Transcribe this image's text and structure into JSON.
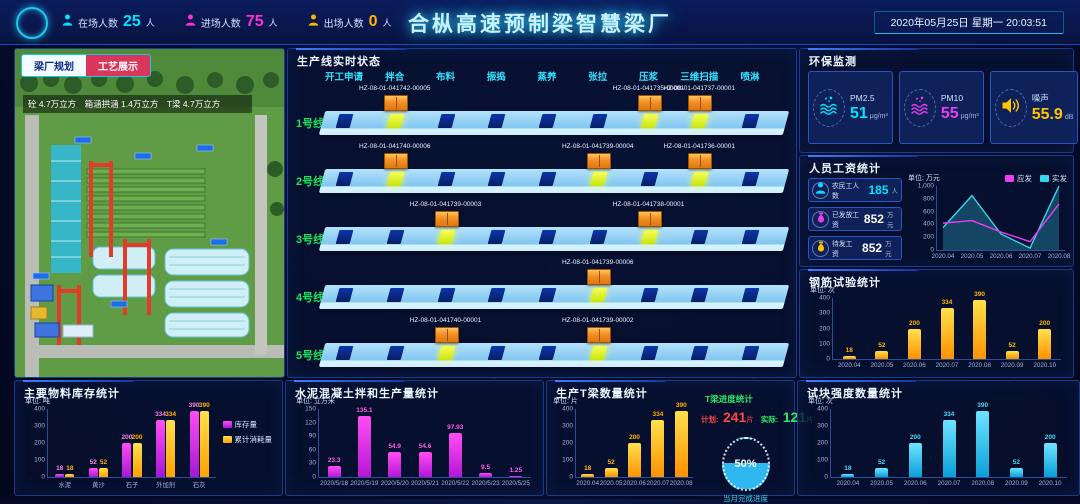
{
  "header": {
    "title": "合枞高速预制梁智慧梁厂",
    "datetime": "2020年05月25日 星期一 20:03:51",
    "people_stats": [
      {
        "icon": "person-icon",
        "label": "在场人数",
        "value": "25",
        "unit": "人",
        "color": "#00e5ff"
      },
      {
        "icon": "person-icon",
        "label": "进场人数",
        "value": "75",
        "unit": "人",
        "color": "#ff2fd6"
      },
      {
        "icon": "person-icon",
        "label": "出场人数",
        "value": "0",
        "unit": "人",
        "color": "#ffb300"
      }
    ]
  },
  "factory_panel": {
    "tabs": [
      {
        "label": "梁厂规划",
        "active": true
      },
      {
        "label": "工艺展示",
        "active": false
      }
    ],
    "capacity_text": "砼 4.7万立方　箱涵拱涵 1.4万立方　T梁 4.7万立方"
  },
  "production_panel": {
    "title": "生产线实时状态",
    "stations": [
      "开工申请",
      "拌合",
      "布料",
      "振捣",
      "蒸养",
      "张拉",
      "压浆",
      "三维扫描",
      "喷淋"
    ],
    "lines": [
      {
        "name": "1号线",
        "markers": [
          {
            "station": "拌合",
            "beam_id": "HZ-08-01-041742-00005"
          },
          {
            "station": "压浆",
            "beam_id": "HZ-08-01-041735-00001"
          },
          {
            "station": "三维扫描",
            "beam_id": "HZ-08-01-041737-00001"
          }
        ]
      },
      {
        "name": "2号线",
        "markers": [
          {
            "station": "拌合",
            "beam_id": "HZ-08-01-041740-00006"
          },
          {
            "station": "张拉",
            "beam_id": "HZ-08-01-041739-00004"
          },
          {
            "station": "三维扫描",
            "beam_id": "HZ-08-01-041736-00001"
          }
        ]
      },
      {
        "name": "3号线",
        "markers": [
          {
            "station": "布料",
            "beam_id": "HZ-08-01-041739-00003"
          },
          {
            "station": "压浆",
            "beam_id": "HZ-08-01-041738-00001"
          }
        ]
      },
      {
        "name": "4号线",
        "markers": [
          {
            "station": "张拉",
            "beam_id": "HZ-08-01-041739-00006"
          }
        ]
      },
      {
        "name": "5号线",
        "markers": [
          {
            "station": "布料",
            "beam_id": "HZ-08-01-041740-00001"
          },
          {
            "station": "张拉",
            "beam_id": "HZ-08-01-041739-00002"
          }
        ]
      }
    ]
  },
  "environment_panel": {
    "title": "环保监测",
    "cards": [
      {
        "icon": "dust-icon",
        "label": "PM2.5",
        "value": "51",
        "unit": "μg/m³",
        "color": "#00e5ff"
      },
      {
        "icon": "dust-icon",
        "label": "PM10",
        "value": "55",
        "unit": "μg/m³",
        "color": "#e93df0"
      },
      {
        "icon": "speaker-icon",
        "label": "噪声",
        "value": "55.9",
        "unit": "dB",
        "color": "#ffc400"
      }
    ]
  },
  "salary_panel": {
    "title": "人员工资统计",
    "stats": [
      {
        "icon": "worker-icon",
        "label": "农民工人数",
        "value": "185",
        "unit": "人",
        "color": "#00e5ff"
      },
      {
        "icon": "money-icon",
        "label": "已发放工资",
        "value": "852",
        "unit": "万元",
        "color": "#e93df0"
      },
      {
        "icon": "money-icon",
        "label": "待发工资",
        "value": "852",
        "unit": "万元",
        "color": "#ffc400"
      }
    ]
  },
  "tbeam_progress": {
    "title": "T梁进度统计",
    "plan_label": "计划:",
    "plan_value": "241",
    "plan_unit": "片",
    "actual_label": "实际:",
    "actual_value": "121",
    "actual_unit": "片",
    "gauge_value": "50%",
    "gauge_caption": "当月完成进度"
  },
  "chart_data": [
    {
      "id": "salary_trend",
      "type": "line",
      "unit_label": "单位: 万元",
      "x": [
        "2020.04",
        "2020.05",
        "2020.06",
        "2020.07",
        "2020.08"
      ],
      "series": [
        {
          "name": "应发",
          "color": "#e93df0",
          "style": "line",
          "values": [
            420,
            460,
            280,
            130,
            720
          ]
        },
        {
          "name": "实发",
          "color": "#35d6f0",
          "style": "area",
          "values": [
            350,
            850,
            250,
            30,
            1000
          ]
        }
      ],
      "ylim": [
        0,
        1000
      ],
      "yticks": [
        0,
        200,
        400,
        600,
        800,
        1000
      ],
      "ytick_labels": [
        "0",
        "200",
        "400",
        "600",
        "800",
        "1,000"
      ],
      "legend_position": "top-right"
    },
    {
      "id": "rebar_tests",
      "type": "bar",
      "title": "钢筋试验统计",
      "unit_label": "单位: 次",
      "categories": [
        "2020.04",
        "2020.05",
        "2020.06",
        "2020.07",
        "2020.08",
        "2020.09",
        "2020.10"
      ],
      "values": [
        18,
        52,
        200,
        334,
        390,
        52,
        200
      ],
      "value_labels": [
        "18",
        "52",
        "200",
        "334",
        "390",
        "52",
        "200"
      ],
      "ylim": [
        0,
        400
      ],
      "yticks": [
        0,
        100,
        200,
        300,
        400
      ],
      "bar_colors": [
        "#ffe14d",
        "#ff9100"
      ],
      "label_color": "#ffb300"
    },
    {
      "id": "materials",
      "type": "grouped-bar",
      "title": "主要物料库存统计",
      "unit_label": "单位: 吨",
      "categories": [
        "水泥",
        "黄沙",
        "石子",
        "外加剂",
        "石灰"
      ],
      "series": [
        {
          "name": "库存量",
          "color_top": "#ff4df2",
          "color_bottom": "#a517d6",
          "label_color": "#ff7de8",
          "values": [
            18,
            52,
            200,
            334,
            390
          ]
        },
        {
          "name": "累计消耗量",
          "color_top": "#ffe14d",
          "color_bottom": "#ffa000",
          "label_color": "#ffb300",
          "values": [
            18,
            52,
            200,
            334,
            390
          ]
        }
      ],
      "ylim": [
        0,
        400
      ],
      "yticks": [
        0,
        100,
        200,
        300,
        400
      ]
    },
    {
      "id": "concrete_production",
      "type": "bar",
      "title": "水泥混凝土拌和生产量统计",
      "unit_label": "单位: 立方米",
      "categories": [
        "2020/5/18",
        "2020/5/19",
        "2020/5/20",
        "2020/5/21",
        "2020/5/22",
        "2020/5/23",
        "2020/5/25"
      ],
      "values": [
        23.3,
        135.1,
        54.9,
        54.6,
        97.93,
        9.5,
        1.25
      ],
      "value_labels": [
        "23.3",
        "135.1",
        "54.9",
        "54.6",
        "97.93",
        "9.5",
        "1.25"
      ],
      "ylim": [
        0,
        150
      ],
      "yticks": [
        0,
        30,
        60,
        90,
        120,
        150
      ],
      "bar_colors": [
        "#ff4df2",
        "#b517d6"
      ],
      "label_color": "#ff5de8"
    },
    {
      "id": "tbeam_count",
      "type": "bar",
      "title": "生产T梁数量统计",
      "unit_label": "单位: 片",
      "categories": [
        "2020.04",
        "2020.05",
        "2020.06",
        "2020.07",
        "2020.08"
      ],
      "values": [
        18,
        52,
        200,
        334,
        390
      ],
      "value_labels": [
        "18",
        "52",
        "200",
        "334",
        "390"
      ],
      "ylim": [
        0,
        400
      ],
      "yticks": [
        0,
        100,
        200,
        300,
        400
      ],
      "bar_colors": [
        "#ffe14d",
        "#ff9100"
      ],
      "label_color": "#ffb300"
    },
    {
      "id": "test_blocks",
      "type": "bar",
      "title": "试块强度数量统计",
      "unit_label": "单位: 次",
      "categories": [
        "2020.04",
        "2020.05",
        "2020.06",
        "2020.07",
        "2020.08",
        "2020.09",
        "2020.10"
      ],
      "values": [
        18,
        52,
        200,
        334,
        390,
        52,
        200
      ],
      "value_labels": [
        "18",
        "52",
        "200",
        "334",
        "390",
        "52",
        "200"
      ],
      "ylim": [
        0,
        400
      ],
      "yticks": [
        0,
        100,
        200,
        300,
        400
      ],
      "bar_colors": [
        "#6fe3ff",
        "#0a9fd8"
      ],
      "label_color": "#4dd9f5"
    }
  ]
}
